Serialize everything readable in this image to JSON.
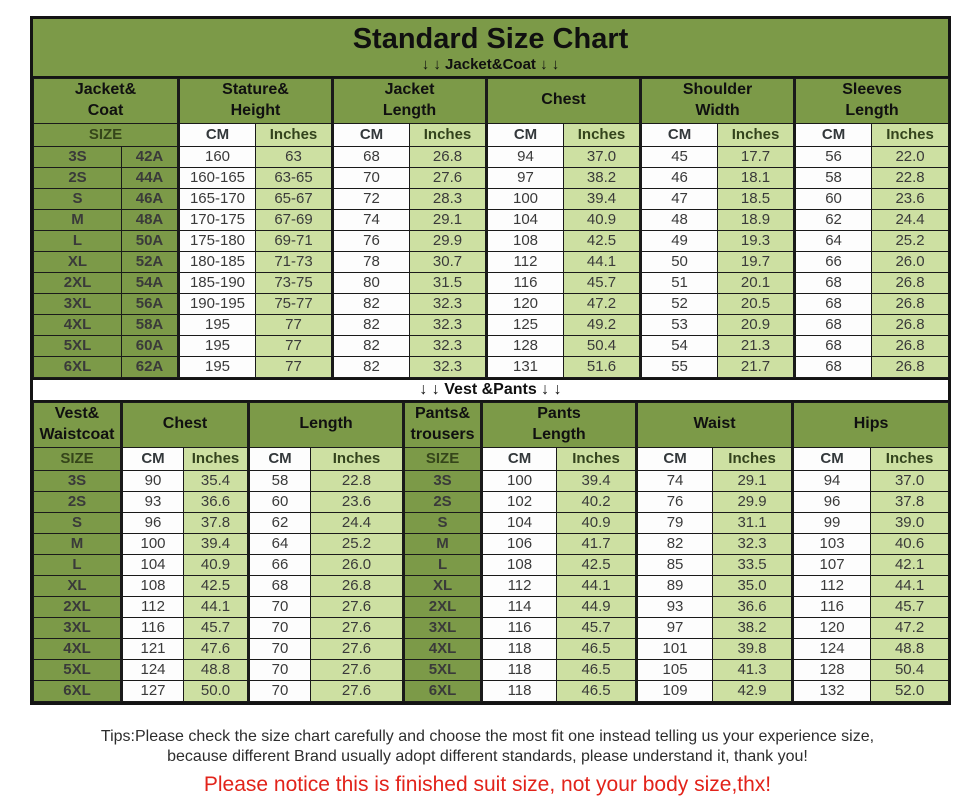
{
  "header": {
    "title": "Standard Size Chart",
    "jacket_subtitle": "↓ ↓  Jacket&Coat  ↓ ↓",
    "vest_divider": "↓ ↓  Vest &Pants ↓ ↓"
  },
  "colors": {
    "header_green": "#7c9a48",
    "light_green": "#cde0a2",
    "white_cell": "#fdfdfd",
    "border_black": "#141414",
    "notice_red": "#e2231a"
  },
  "footer": {
    "tips_line1": "Tips:Please check the size chart carefully and choose the most fit one instead telling us your experience size,",
    "tips_line2": "because different Brand usually adopt different standards, please understand it, thank you!",
    "notice": "Please notice this is finished suit size, not your body size,thx!"
  },
  "chart_data": [
    {
      "type": "table",
      "title": "Jacket&Coat",
      "group_headers": [
        [
          "Jacket&",
          "Coat"
        ],
        [
          "Stature&",
          "Height"
        ],
        [
          "Jacket",
          "Length"
        ],
        [
          "Chest"
        ],
        [
          "Shoulder",
          "Width"
        ],
        [
          "Sleeves",
          "Length"
        ]
      ],
      "unit_row": [
        "SIZE",
        "CM",
        "Inches",
        "CM",
        "Inches",
        "CM",
        "Inches",
        "CM",
        "Inches",
        "CM",
        "Inches"
      ],
      "rows": [
        [
          "3S",
          "42A",
          "160",
          "63",
          "68",
          "26.8",
          "94",
          "37.0",
          "45",
          "17.7",
          "56",
          "22.0"
        ],
        [
          "2S",
          "44A",
          "160-165",
          "63-65",
          "70",
          "27.6",
          "97",
          "38.2",
          "46",
          "18.1",
          "58",
          "22.8"
        ],
        [
          "S",
          "46A",
          "165-170",
          "65-67",
          "72",
          "28.3",
          "100",
          "39.4",
          "47",
          "18.5",
          "60",
          "23.6"
        ],
        [
          "M",
          "48A",
          "170-175",
          "67-69",
          "74",
          "29.1",
          "104",
          "40.9",
          "48",
          "18.9",
          "62",
          "24.4"
        ],
        [
          "L",
          "50A",
          "175-180",
          "69-71",
          "76",
          "29.9",
          "108",
          "42.5",
          "49",
          "19.3",
          "64",
          "25.2"
        ],
        [
          "XL",
          "52A",
          "180-185",
          "71-73",
          "78",
          "30.7",
          "112",
          "44.1",
          "50",
          "19.7",
          "66",
          "26.0"
        ],
        [
          "2XL",
          "54A",
          "185-190",
          "73-75",
          "80",
          "31.5",
          "116",
          "45.7",
          "51",
          "20.1",
          "68",
          "26.8"
        ],
        [
          "3XL",
          "56A",
          "190-195",
          "75-77",
          "82",
          "32.3",
          "120",
          "47.2",
          "52",
          "20.5",
          "68",
          "26.8"
        ],
        [
          "4XL",
          "58A",
          "195",
          "77",
          "82",
          "32.3",
          "125",
          "49.2",
          "53",
          "20.9",
          "68",
          "26.8"
        ],
        [
          "5XL",
          "60A",
          "195",
          "77",
          "82",
          "32.3",
          "128",
          "50.4",
          "54",
          "21.3",
          "68",
          "26.8"
        ],
        [
          "6XL",
          "62A",
          "195",
          "77",
          "82",
          "32.3",
          "131",
          "51.6",
          "55",
          "21.7",
          "68",
          "26.8"
        ]
      ]
    },
    {
      "type": "table",
      "title": "Vest &Pants",
      "group_headers": [
        [
          "Vest&",
          "Waistcoat"
        ],
        [
          "Chest"
        ],
        [
          "Length"
        ],
        [
          "Pants&",
          "trousers"
        ],
        [
          "Pants",
          "Length"
        ],
        [
          "Waist"
        ],
        [
          "Hips"
        ]
      ],
      "unit_row": [
        "SIZE",
        "CM",
        "Inches",
        "CM",
        "Inches",
        "SIZE",
        "CM",
        "Inches",
        "CM",
        "Inches",
        "CM",
        "Inches"
      ],
      "rows": [
        [
          "3S",
          "90",
          "35.4",
          "58",
          "22.8",
          "3S",
          "100",
          "39.4",
          "74",
          "29.1",
          "94",
          "37.0"
        ],
        [
          "2S",
          "93",
          "36.6",
          "60",
          "23.6",
          "2S",
          "102",
          "40.2",
          "76",
          "29.9",
          "96",
          "37.8"
        ],
        [
          "S",
          "96",
          "37.8",
          "62",
          "24.4",
          "S",
          "104",
          "40.9",
          "79",
          "31.1",
          "99",
          "39.0"
        ],
        [
          "M",
          "100",
          "39.4",
          "64",
          "25.2",
          "M",
          "106",
          "41.7",
          "82",
          "32.3",
          "103",
          "40.6"
        ],
        [
          "L",
          "104",
          "40.9",
          "66",
          "26.0",
          "L",
          "108",
          "42.5",
          "85",
          "33.5",
          "107",
          "42.1"
        ],
        [
          "XL",
          "108",
          "42.5",
          "68",
          "26.8",
          "XL",
          "112",
          "44.1",
          "89",
          "35.0",
          "112",
          "44.1"
        ],
        [
          "2XL",
          "112",
          "44.1",
          "70",
          "27.6",
          "2XL",
          "114",
          "44.9",
          "93",
          "36.6",
          "116",
          "45.7"
        ],
        [
          "3XL",
          "116",
          "45.7",
          "70",
          "27.6",
          "3XL",
          "116",
          "45.7",
          "97",
          "38.2",
          "120",
          "47.2"
        ],
        [
          "4XL",
          "121",
          "47.6",
          "70",
          "27.6",
          "4XL",
          "118",
          "46.5",
          "101",
          "39.8",
          "124",
          "48.8"
        ],
        [
          "5XL",
          "124",
          "48.8",
          "70",
          "27.6",
          "5XL",
          "118",
          "46.5",
          "105",
          "41.3",
          "128",
          "50.4"
        ],
        [
          "6XL",
          "127",
          "50.0",
          "70",
          "27.6",
          "6XL",
          "118",
          "46.5",
          "109",
          "42.9",
          "132",
          "52.0"
        ]
      ]
    }
  ]
}
